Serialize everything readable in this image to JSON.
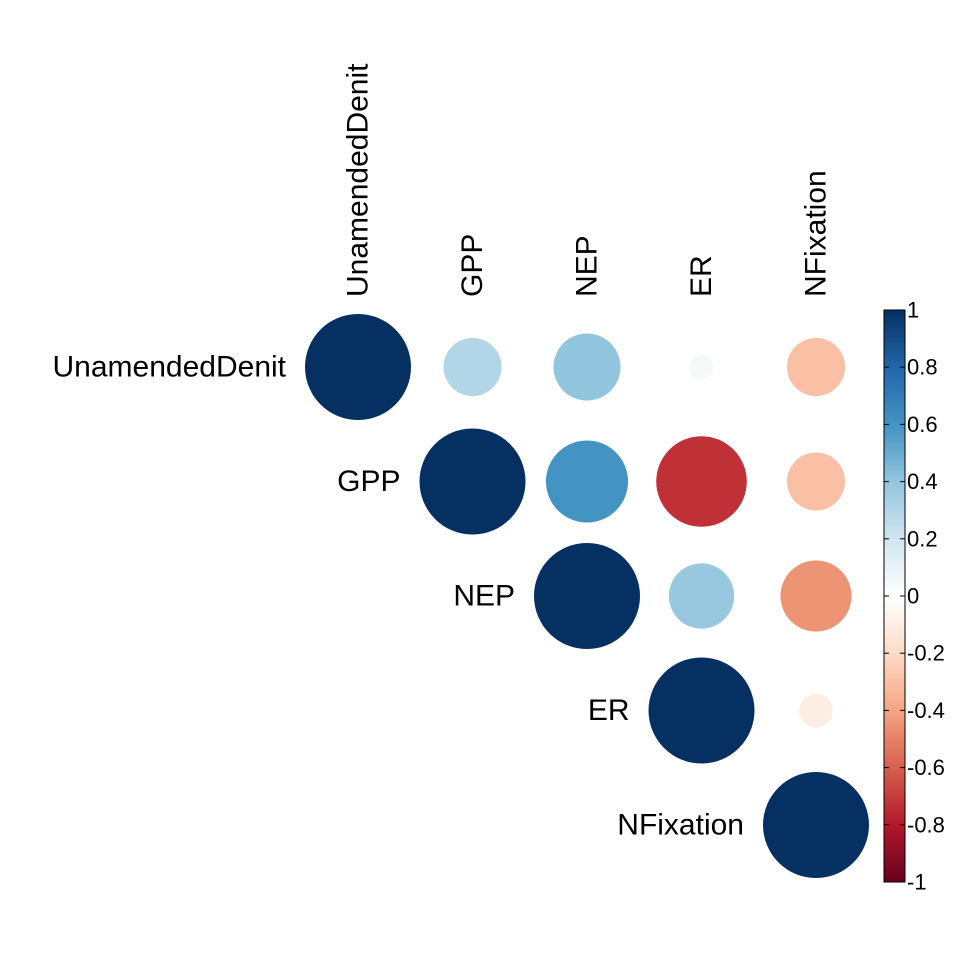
{
  "chart_data": {
    "type": "correlation-matrix",
    "layout": "upper-triangle",
    "glyph": "circle",
    "variables": [
      "UnamendedDenit",
      "GPP",
      "NEP",
      "ER",
      "NFixation"
    ],
    "matrix": [
      [
        1.0,
        0.3,
        0.4,
        0.05,
        -0.3
      ],
      [
        null,
        1.0,
        0.6,
        -0.73,
        -0.3
      ],
      [
        null,
        null,
        1.0,
        0.38,
        -0.45
      ],
      [
        null,
        null,
        null,
        1.0,
        -0.1
      ],
      [
        null,
        null,
        null,
        null,
        1.0
      ]
    ],
    "color_scale": {
      "min": -1,
      "max": 1,
      "ticks": [
        1,
        0.8,
        0.6,
        0.4,
        0.2,
        0,
        -0.2,
        -0.4,
        -0.6,
        -0.8,
        -1
      ],
      "tick_labels": [
        "1",
        "0.8",
        "0.6",
        "0.4",
        "0.2",
        "0",
        "-0.2",
        "-0.4",
        "-0.6",
        "-0.8",
        "-1"
      ],
      "colors_low_to_high": [
        "#67001F",
        "#B2182B",
        "#D6604D",
        "#F4A582",
        "#FDDBC7",
        "#FFFFFF",
        "#D1E5F0",
        "#92C5DE",
        "#4393C3",
        "#2166AC",
        "#053061"
      ]
    },
    "xlabel": "",
    "ylabel": "",
    "title": ""
  }
}
